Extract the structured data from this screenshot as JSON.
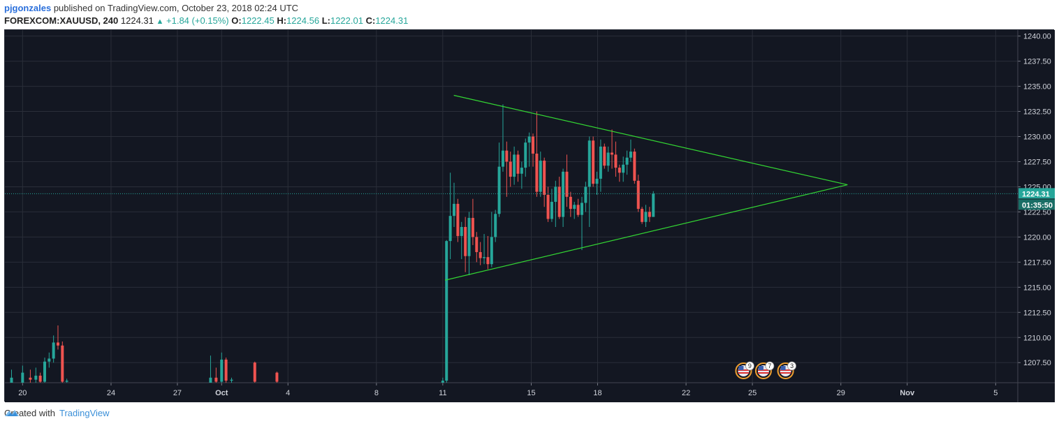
{
  "header": {
    "author": "pjgonzales",
    "published": "published on TradingView.com, October 23, 2018 02:24 UTC",
    "symbol": "FOREXCOM:XAUUSD, 240",
    "last": "1224.31",
    "change": "+1.84 (+0.15%)",
    "o_label": "O:",
    "o_val": "1222.45",
    "h_label": "H:",
    "h_val": "1224.56",
    "l_label": "L:",
    "l_val": "1222.01",
    "c_label": "C:",
    "c_val": "1224.31"
  },
  "footer": {
    "created_with": "Created with",
    "brand": "TradingView"
  },
  "colors": {
    "bg": "#131722",
    "up": "#26a69a",
    "down": "#ef5350",
    "trend": "#33d633",
    "grid": "#2a2e39",
    "axis_text": "#d1d4dc"
  },
  "chart_data": {
    "type": "candlestick",
    "y_ticks": [
      1240.0,
      1237.5,
      1235.0,
      1232.5,
      1230.0,
      1227.5,
      1225.0,
      1222.5,
      1220.0,
      1217.5,
      1215.0,
      1212.5,
      1210.0,
      1207.5
    ],
    "ylim": [
      1205.5,
      1240.6
    ],
    "x_ticks": [
      {
        "label": "20",
        "x": 0
      },
      {
        "label": "24",
        "x": 4
      },
      {
        "label": "27",
        "x": 7
      },
      {
        "label": "Oct",
        "x": 9
      },
      {
        "label": "4",
        "x": 12
      },
      {
        "label": "8",
        "x": 16
      },
      {
        "label": "11",
        "x": 19
      },
      {
        "label": "15",
        "x": 23
      },
      {
        "label": "18",
        "x": 26
      },
      {
        "label": "22",
        "x": 30
      },
      {
        "label": "25",
        "x": 33
      },
      {
        "label": "29",
        "x": 37
      },
      {
        "label": "Nov",
        "x": 40
      },
      {
        "label": "5",
        "x": 44
      }
    ],
    "xlim": [
      -0.8,
      45.0
    ],
    "price_line": {
      "value": 1224.31,
      "label": "1224.31",
      "countdown": "01:35:50"
    },
    "events": [
      {
        "x": 32.6,
        "count": "9"
      },
      {
        "x": 33.5,
        "count": "7"
      },
      {
        "x": 34.5,
        "count": "3"
      }
    ],
    "trendlines": [
      {
        "x1": 19.5,
        "y1": 1234.1,
        "x2": 37.3,
        "y2": 1225.2
      },
      {
        "x1": 19.1,
        "y1": 1215.7,
        "x2": 37.3,
        "y2": 1225.2
      }
    ],
    "candles": [
      {
        "x": -0.5,
        "o": 1205.5,
        "h": 1206.8,
        "l": 1205.5,
        "c": 1206.0
      },
      {
        "x": 0.0,
        "o": 1205.5,
        "h": 1207.2,
        "l": 1205.5,
        "c": 1206.5
      },
      {
        "x": 0.35,
        "o": 1206.0,
        "h": 1206.8,
        "l": 1205.5,
        "c": 1205.8
      },
      {
        "x": 0.6,
        "o": 1205.8,
        "h": 1207.0,
        "l": 1205.5,
        "c": 1206.2
      },
      {
        "x": 0.8,
        "o": 1206.2,
        "h": 1206.5,
        "l": 1205.5,
        "c": 1205.6
      },
      {
        "x": 1.0,
        "o": 1205.6,
        "h": 1208.0,
        "l": 1205.5,
        "c": 1207.6
      },
      {
        "x": 1.2,
        "o": 1207.6,
        "h": 1208.5,
        "l": 1207.0,
        "c": 1207.9
      },
      {
        "x": 1.4,
        "o": 1207.9,
        "h": 1210.2,
        "l": 1207.5,
        "c": 1209.5
      },
      {
        "x": 1.6,
        "o": 1209.5,
        "h": 1211.2,
        "l": 1208.8,
        "c": 1209.2
      },
      {
        "x": 1.8,
        "o": 1209.2,
        "h": 1209.6,
        "l": 1205.5,
        "c": 1205.6
      },
      {
        "x": 2.0,
        "o": 1205.6,
        "h": 1205.9,
        "l": 1205.5,
        "c": 1205.7
      },
      {
        "x": 8.5,
        "o": 1205.5,
        "h": 1208.2,
        "l": 1205.5,
        "c": 1206.0
      },
      {
        "x": 8.75,
        "o": 1206.0,
        "h": 1207.0,
        "l": 1205.5,
        "c": 1205.6
      },
      {
        "x": 9.0,
        "o": 1205.6,
        "h": 1208.5,
        "l": 1205.5,
        "c": 1207.8
      },
      {
        "x": 9.2,
        "o": 1207.8,
        "h": 1208.0,
        "l": 1205.5,
        "c": 1205.7
      },
      {
        "x": 9.45,
        "o": 1205.7,
        "h": 1206.0,
        "l": 1205.5,
        "c": 1205.8
      },
      {
        "x": 10.5,
        "o": 1207.5,
        "h": 1207.6,
        "l": 1205.5,
        "c": 1205.6
      },
      {
        "x": 11.5,
        "o": 1206.5,
        "h": 1206.6,
        "l": 1205.5,
        "c": 1205.6
      },
      {
        "x": 19.0,
        "o": 1205.5,
        "h": 1206.0,
        "l": 1205.5,
        "c": 1205.7
      },
      {
        "x": 19.17,
        "o": 1205.7,
        "h": 1219.7,
        "l": 1205.5,
        "c": 1219.6
      },
      {
        "x": 19.34,
        "o": 1219.6,
        "h": 1226.4,
        "l": 1217.8,
        "c": 1222.1
      },
      {
        "x": 19.51,
        "o": 1222.1,
        "h": 1225.4,
        "l": 1221.0,
        "c": 1223.3
      },
      {
        "x": 19.68,
        "o": 1223.3,
        "h": 1223.8,
        "l": 1219.5,
        "c": 1220.1
      },
      {
        "x": 19.85,
        "o": 1220.1,
        "h": 1221.5,
        "l": 1217.8,
        "c": 1221.0
      },
      {
        "x": 20.02,
        "o": 1221.0,
        "h": 1222.0,
        "l": 1216.5,
        "c": 1218.1
      },
      {
        "x": 20.19,
        "o": 1218.1,
        "h": 1222.5,
        "l": 1216.2,
        "c": 1221.9
      },
      {
        "x": 20.36,
        "o": 1221.9,
        "h": 1223.8,
        "l": 1219.2,
        "c": 1220.0
      },
      {
        "x": 20.53,
        "o": 1220.0,
        "h": 1220.5,
        "l": 1217.5,
        "c": 1218.5
      },
      {
        "x": 20.7,
        "o": 1218.5,
        "h": 1219.5,
        "l": 1217.2,
        "c": 1217.9
      },
      {
        "x": 20.87,
        "o": 1217.9,
        "h": 1220.3,
        "l": 1217.3,
        "c": 1218.0
      },
      {
        "x": 21.04,
        "o": 1218.0,
        "h": 1220.1,
        "l": 1216.8,
        "c": 1217.3
      },
      {
        "x": 21.21,
        "o": 1217.3,
        "h": 1222.5,
        "l": 1217.0,
        "c": 1220.0
      },
      {
        "x": 21.38,
        "o": 1220.0,
        "h": 1222.7,
        "l": 1219.5,
        "c": 1222.3
      },
      {
        "x": 21.55,
        "o": 1222.3,
        "h": 1229.4,
        "l": 1222.0,
        "c": 1227.0
      },
      {
        "x": 21.72,
        "o": 1227.0,
        "h": 1233.2,
        "l": 1226.5,
        "c": 1228.6
      },
      {
        "x": 21.89,
        "o": 1228.6,
        "h": 1229.5,
        "l": 1224.0,
        "c": 1227.5
      },
      {
        "x": 22.06,
        "o": 1227.5,
        "h": 1228.5,
        "l": 1225.0,
        "c": 1226.0
      },
      {
        "x": 22.23,
        "o": 1226.0,
        "h": 1229.0,
        "l": 1225.2,
        "c": 1228.2
      },
      {
        "x": 22.4,
        "o": 1228.2,
        "h": 1228.6,
        "l": 1225.5,
        "c": 1226.3
      },
      {
        "x": 22.57,
        "o": 1226.3,
        "h": 1227.5,
        "l": 1224.8,
        "c": 1226.9
      },
      {
        "x": 22.74,
        "o": 1226.9,
        "h": 1229.8,
        "l": 1226.0,
        "c": 1229.4
      },
      {
        "x": 22.91,
        "o": 1229.4,
        "h": 1230.4,
        "l": 1227.0,
        "c": 1230.0
      },
      {
        "x": 23.08,
        "o": 1230.0,
        "h": 1230.3,
        "l": 1227.0,
        "c": 1228.3
      },
      {
        "x": 23.25,
        "o": 1228.3,
        "h": 1232.5,
        "l": 1224.0,
        "c": 1224.5
      },
      {
        "x": 23.42,
        "o": 1224.5,
        "h": 1228.5,
        "l": 1224.0,
        "c": 1227.6
      },
      {
        "x": 23.59,
        "o": 1227.6,
        "h": 1227.9,
        "l": 1223.0,
        "c": 1224.2
      },
      {
        "x": 23.76,
        "o": 1224.2,
        "h": 1225.0,
        "l": 1221.5,
        "c": 1221.8
      },
      {
        "x": 23.93,
        "o": 1221.8,
        "h": 1224.8,
        "l": 1221.5,
        "c": 1223.5
      },
      {
        "x": 24.1,
        "o": 1223.5,
        "h": 1225.6,
        "l": 1221.0,
        "c": 1225.0
      },
      {
        "x": 24.27,
        "o": 1225.0,
        "h": 1226.0,
        "l": 1221.8,
        "c": 1222.0
      },
      {
        "x": 24.44,
        "o": 1222.0,
        "h": 1226.8,
        "l": 1221.0,
        "c": 1226.5
      },
      {
        "x": 24.61,
        "o": 1226.5,
        "h": 1228.2,
        "l": 1223.0,
        "c": 1224.0
      },
      {
        "x": 24.78,
        "o": 1224.0,
        "h": 1224.5,
        "l": 1222.0,
        "c": 1222.8
      },
      {
        "x": 24.95,
        "o": 1222.8,
        "h": 1223.5,
        "l": 1221.8,
        "c": 1223.2
      },
      {
        "x": 25.12,
        "o": 1223.2,
        "h": 1223.8,
        "l": 1222.0,
        "c": 1222.2
      },
      {
        "x": 25.29,
        "o": 1222.2,
        "h": 1224.0,
        "l": 1218.7,
        "c": 1223.4
      },
      {
        "x": 25.46,
        "o": 1223.4,
        "h": 1225.5,
        "l": 1222.5,
        "c": 1225.0
      },
      {
        "x": 25.63,
        "o": 1225.0,
        "h": 1230.0,
        "l": 1221.0,
        "c": 1229.6
      },
      {
        "x": 25.8,
        "o": 1229.6,
        "h": 1230.0,
        "l": 1225.0,
        "c": 1225.3
      },
      {
        "x": 25.97,
        "o": 1225.3,
        "h": 1226.5,
        "l": 1224.2,
        "c": 1225.8
      },
      {
        "x": 26.14,
        "o": 1225.8,
        "h": 1229.7,
        "l": 1224.5,
        "c": 1229.0
      },
      {
        "x": 26.31,
        "o": 1229.0,
        "h": 1229.3,
        "l": 1226.8,
        "c": 1227.1
      },
      {
        "x": 26.48,
        "o": 1227.1,
        "h": 1229.0,
        "l": 1226.5,
        "c": 1228.4
      },
      {
        "x": 26.65,
        "o": 1228.4,
        "h": 1230.7,
        "l": 1226.8,
        "c": 1228.2
      },
      {
        "x": 26.82,
        "o": 1228.2,
        "h": 1229.5,
        "l": 1226.0,
        "c": 1226.9
      },
      {
        "x": 26.99,
        "o": 1226.9,
        "h": 1227.2,
        "l": 1225.5,
        "c": 1226.4
      },
      {
        "x": 27.16,
        "o": 1226.4,
        "h": 1228.0,
        "l": 1225.5,
        "c": 1227.2
      },
      {
        "x": 27.33,
        "o": 1227.2,
        "h": 1228.6,
        "l": 1226.2,
        "c": 1227.9
      },
      {
        "x": 27.5,
        "o": 1227.9,
        "h": 1229.7,
        "l": 1227.5,
        "c": 1228.5
      },
      {
        "x": 27.67,
        "o": 1228.5,
        "h": 1228.8,
        "l": 1225.3,
        "c": 1225.6
      },
      {
        "x": 27.84,
        "o": 1225.6,
        "h": 1226.2,
        "l": 1222.5,
        "c": 1222.8
      },
      {
        "x": 28.01,
        "o": 1222.8,
        "h": 1223.0,
        "l": 1221.3,
        "c": 1221.5
      },
      {
        "x": 28.18,
        "o": 1221.5,
        "h": 1223.2,
        "l": 1221.0,
        "c": 1222.5
      },
      {
        "x": 28.35,
        "o": 1222.5,
        "h": 1223.0,
        "l": 1221.5,
        "c": 1222.0
      },
      {
        "x": 28.52,
        "o": 1222.0,
        "h": 1224.56,
        "l": 1222.01,
        "c": 1224.31
      }
    ]
  }
}
